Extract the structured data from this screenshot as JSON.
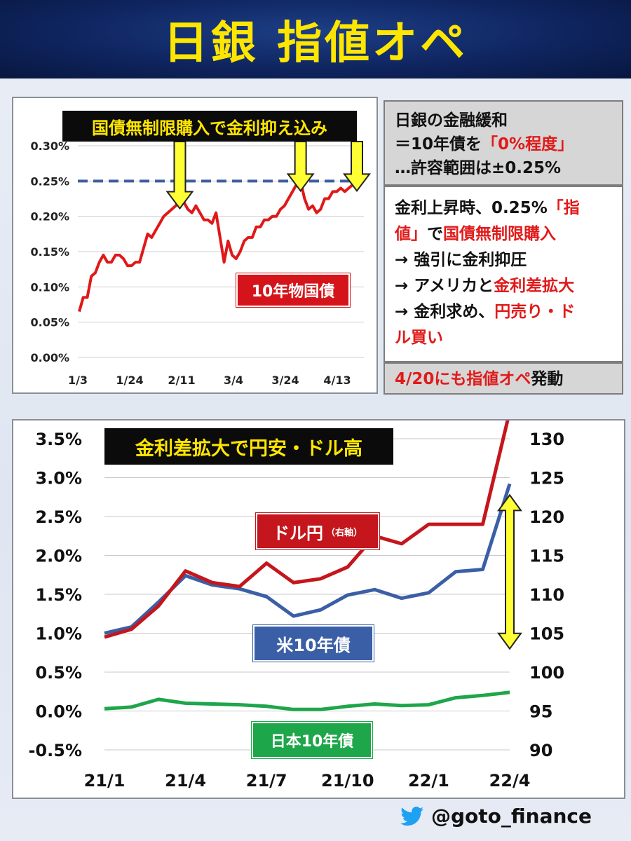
{
  "header": {
    "title": "日銀 指値オペ"
  },
  "top_chart": {
    "banner": "国債無制限購入で金利抑え込み",
    "series_label": "10年物国債"
  },
  "info": {
    "box1": {
      "line1": "日銀の金融緩和",
      "line2a": "＝10年債を",
      "line2b": "「0%程度」",
      "line3": "…許容範囲は±0.25%"
    },
    "box2": {
      "l1a": "金利上昇時、0.25%",
      "l1b": "「指",
      "l2a": "値」",
      "l2b": "で",
      "l2c": "国債無制限購入",
      "l3": "→ 強引に金利抑圧",
      "l4a": "→ アメリカと",
      "l4b": "金利差拡大",
      "l5a": "→ 金利求め、",
      "l5b": "円売り・ド",
      "l6": "ル買い"
    },
    "box3": {
      "a": "4/20にも",
      "b": "指値オペ",
      "c": "発動"
    }
  },
  "bottom_chart": {
    "banner": "金利差拡大で円安・ドル高",
    "label_usdjpy": "ドル円",
    "label_usdjpy_note": "（右軸）",
    "label_us": "米10年債",
    "label_jp": "日本10年債"
  },
  "footer": {
    "handle": "@goto_finance",
    "icon": "twitter-bird-icon"
  },
  "colors": {
    "red": "#d4141a",
    "blue": "#3b5fa6",
    "green": "#1ea64a",
    "dash": "#3d5ea0",
    "yellow": "#ffff33"
  },
  "chart_data": [
    {
      "type": "line",
      "ylim": [
        0,
        0.3
      ],
      "yticks": [
        "0.00%",
        "0.05%",
        "0.10%",
        "0.15%",
        "0.20%",
        "0.25%",
        "0.30%"
      ],
      "xticks": [
        "1/3",
        "1/24",
        "2/11",
        "3/4",
        "3/24",
        "4/13"
      ],
      "reference_line": 0.25,
      "series": [
        {
          "name": "10年物国債",
          "values": [
            0.065,
            0.085,
            0.085,
            0.115,
            0.12,
            0.135,
            0.145,
            0.135,
            0.135,
            0.145,
            0.145,
            0.14,
            0.13,
            0.13,
            0.135,
            0.135,
            0.155,
            0.175,
            0.17,
            0.18,
            0.19,
            0.2,
            0.205,
            0.21,
            0.215,
            0.225,
            0.22,
            0.21,
            0.205,
            0.215,
            0.205,
            0.195,
            0.195,
            0.19,
            0.205,
            0.17,
            0.135,
            0.165,
            0.145,
            0.14,
            0.15,
            0.165,
            0.17,
            0.17,
            0.185,
            0.185,
            0.195,
            0.195,
            0.2,
            0.2,
            0.21,
            0.215,
            0.225,
            0.235,
            0.245,
            0.25,
            0.225,
            0.21,
            0.215,
            0.205,
            0.21,
            0.225,
            0.225,
            0.235,
            0.235,
            0.24,
            0.235,
            0.24,
            0.245,
            0.25
          ]
        }
      ]
    },
    {
      "type": "line",
      "categories": [
        "21/1",
        "21/2",
        "21/3",
        "21/4",
        "21/5",
        "21/6",
        "21/7",
        "21/8",
        "21/9",
        "21/10",
        "21/11",
        "21/12",
        "22/1",
        "22/2",
        "22/3",
        "22/4"
      ],
      "xticks": [
        "21/1",
        "21/4",
        "21/7",
        "21/10",
        "22/1",
        "22/4"
      ],
      "left_axis": {
        "ticks": [
          "-0.5%",
          "0.0%",
          "0.5%",
          "1.0%",
          "1.5%",
          "2.0%",
          "2.5%",
          "3.0%",
          "3.5%"
        ],
        "ylim": [
          -0.5,
          3.5
        ]
      },
      "right_axis": {
        "ticks": [
          "90",
          "95",
          "100",
          "105",
          "110",
          "115",
          "120",
          "125",
          "130"
        ],
        "ylim": [
          90,
          130
        ]
      },
      "series": [
        {
          "name": "米10年債",
          "axis": "left",
          "values": [
            1.0,
            1.08,
            1.4,
            1.74,
            1.62,
            1.57,
            1.47,
            1.22,
            1.3,
            1.49,
            1.56,
            1.45,
            1.52,
            1.79,
            1.82,
            2.92
          ]
        },
        {
          "name": "日本10年債",
          "axis": "left",
          "values": [
            0.03,
            0.05,
            0.15,
            0.1,
            0.09,
            0.08,
            0.06,
            0.02,
            0.02,
            0.06,
            0.09,
            0.07,
            0.08,
            0.17,
            0.2,
            0.24
          ]
        },
        {
          "name": "ドル円",
          "axis": "right",
          "values": [
            104.5,
            105.5,
            108.5,
            113.0,
            111.5,
            111.0,
            114.0,
            111.5,
            112.0,
            113.5,
            117.5,
            116.5,
            119.0,
            119.0,
            119.0,
            133.5
          ]
        }
      ]
    }
  ]
}
